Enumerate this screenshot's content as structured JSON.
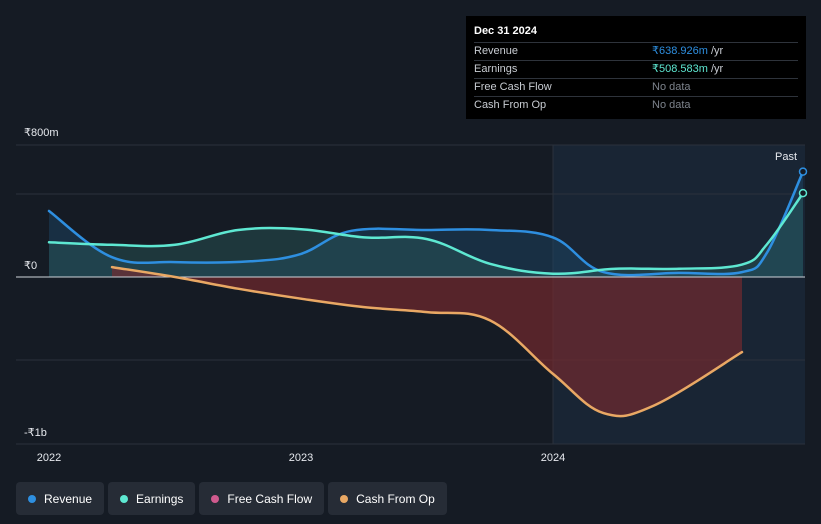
{
  "tooltip": {
    "date": "Dec 31 2024",
    "rows": [
      {
        "label": "Revenue",
        "value": "₹638.926m",
        "unit": "/yr"
      },
      {
        "label": "Earnings",
        "value": "₹508.583m",
        "unit": "/yr"
      },
      {
        "label": "Free Cash Flow",
        "value": "No data",
        "unit": ""
      },
      {
        "label": "Cash From Op",
        "value": "No data",
        "unit": ""
      }
    ]
  },
  "colors": {
    "revenue": "#2e8fe0",
    "earnings": "#5ee8d2",
    "free_cash_flow": "#d05a8e",
    "cash_from_op": "#e9a864",
    "negative_fill": "#7a2a2e",
    "past_shade": "#1b2a3a"
  },
  "legend": [
    {
      "name": "Revenue",
      "color": "#2e8fe0"
    },
    {
      "name": "Earnings",
      "color": "#5ee8d2"
    },
    {
      "name": "Free Cash Flow",
      "color": "#d05a8e"
    },
    {
      "name": "Cash From Op",
      "color": "#e9a864"
    }
  ],
  "chart_data": {
    "type": "area",
    "y_unit": "₹m",
    "ylim": [
      -1000,
      800
    ],
    "xlim": [
      2021.9,
      2025.0
    ],
    "y_ticks": [
      {
        "value": 800,
        "label": "₹800m"
      },
      {
        "value": 0,
        "label": "₹0"
      },
      {
        "value": -1000,
        "label": "-₹1b"
      }
    ],
    "x_ticks": [
      {
        "value": 2022,
        "label": "2022"
      },
      {
        "value": 2023,
        "label": "2023"
      },
      {
        "value": 2024,
        "label": "2024"
      }
    ],
    "past_region": {
      "start": 2024.0,
      "label": "Past"
    },
    "series": [
      {
        "name": "Revenue",
        "x": [
          2022.0,
          2022.25,
          2022.5,
          2022.8,
          2023.0,
          2023.2,
          2023.5,
          2023.75,
          2024.0,
          2024.2,
          2024.5,
          2024.75,
          2024.85,
          2025.0
        ],
        "y": [
          400,
          120,
          90,
          95,
          140,
          280,
          285,
          285,
          240,
          30,
          25,
          30,
          150,
          638.926
        ]
      },
      {
        "name": "Earnings",
        "x": [
          2022.0,
          2022.25,
          2022.5,
          2022.75,
          2023.0,
          2023.25,
          2023.5,
          2023.75,
          2024.0,
          2024.25,
          2024.5,
          2024.75,
          2024.85,
          2025.0
        ],
        "y": [
          210,
          195,
          195,
          285,
          290,
          240,
          230,
          80,
          20,
          50,
          50,
          75,
          200,
          508.583
        ]
      },
      {
        "name": "Cash From Op",
        "x": [
          2022.25,
          2022.5,
          2022.75,
          2023.0,
          2023.25,
          2023.5,
          2023.75,
          2024.0,
          2024.2,
          2024.4,
          2024.75
        ],
        "y": [
          60,
          0,
          -70,
          -130,
          -180,
          -210,
          -260,
          -580,
          -815,
          -770,
          -450
        ]
      }
    ]
  }
}
